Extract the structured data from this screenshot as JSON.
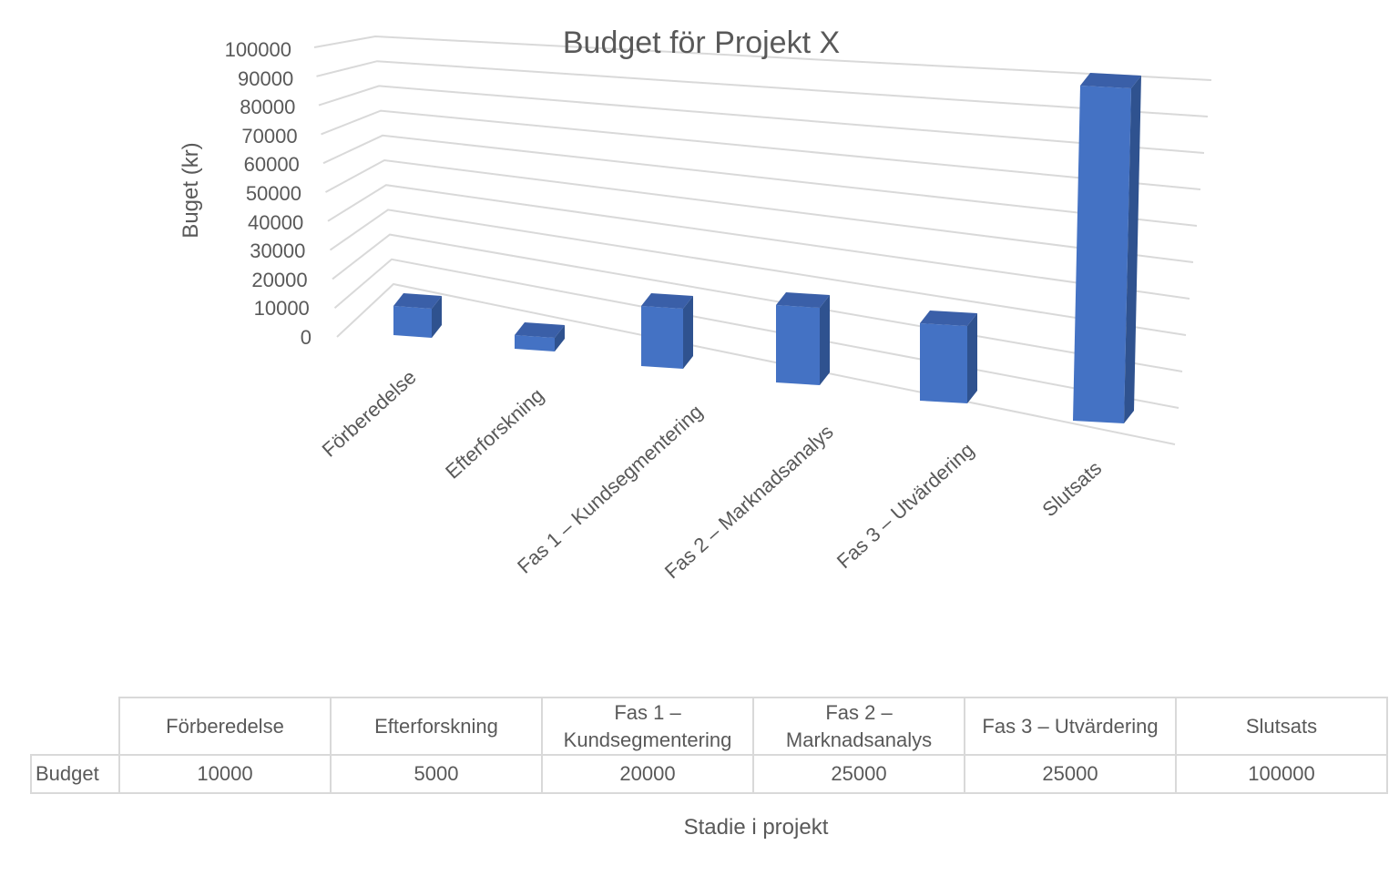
{
  "chart_data": {
    "type": "bar",
    "variant": "3d-column",
    "title": "Budget för Projekt X",
    "xlabel": "Stadie i projekt",
    "ylabel": "Buget (kr)",
    "ylim": [
      0,
      100000
    ],
    "yticks": [
      "0",
      "10000",
      "20000",
      "30000",
      "40000",
      "50000",
      "60000",
      "70000",
      "80000",
      "90000",
      "100000"
    ],
    "categories": [
      "Förberedelse",
      "Efterforskning",
      "Fas 1 – Kundsegmentering",
      "Fas 2 – Marknadsanalys",
      "Fas 3 – Utvärdering",
      "Slutsats"
    ],
    "series": [
      {
        "name": "Budget",
        "values": [
          10000,
          5000,
          20000,
          25000,
          25000,
          100000
        ],
        "color": "#4472c4"
      }
    ],
    "grid": true,
    "legend": "none",
    "data_table": true
  },
  "colors": {
    "bar_front": "#4472c4",
    "bar_side": "#2f528f",
    "bar_top": "#3a5fa8",
    "grid": "#d9d9d9",
    "text": "#595959"
  },
  "table": {
    "row_label": "Budget",
    "headers": [
      [
        "Förberedelse"
      ],
      [
        "Efterforskning"
      ],
      [
        "Fas 1 –",
        "Kundsegmentering"
      ],
      [
        "Fas 2 –",
        "Marknadsanalys"
      ],
      [
        "Fas 3 – Utvärdering"
      ],
      [
        "Slutsats"
      ]
    ],
    "values": [
      "10000",
      "5000",
      "20000",
      "25000",
      "25000",
      "100000"
    ]
  }
}
